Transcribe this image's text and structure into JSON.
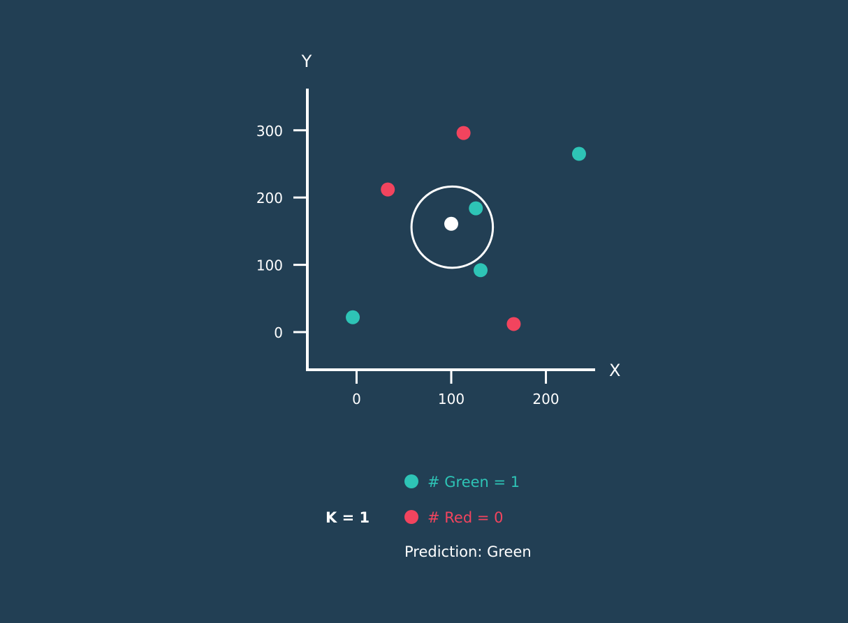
{
  "colors": {
    "background": "#223f54",
    "axis": "#ffffff",
    "green": "#2ec4b6",
    "red": "#f2445e",
    "query": "#ffffff",
    "text": "#ffffff"
  },
  "chart_data": {
    "type": "scatter",
    "xlabel": "X",
    "ylabel": "Y",
    "xlim": [
      -52,
      252
    ],
    "ylim": [
      -56,
      362
    ],
    "x_ticks": [
      0,
      100,
      200
    ],
    "y_ticks": [
      0,
      100,
      200,
      300
    ],
    "grid": false,
    "series": [
      {
        "color": "green",
        "points": [
          {
            "x": -4,
            "y": 22
          },
          {
            "x": 126,
            "y": 184
          },
          {
            "x": 131,
            "y": 92
          },
          {
            "x": 235,
            "y": 265
          }
        ]
      },
      {
        "color": "red",
        "points": [
          {
            "x": 33,
            "y": 212
          },
          {
            "x": 113,
            "y": 296
          },
          {
            "x": 166,
            "y": 12
          }
        ]
      }
    ],
    "query_point": {
      "x": 100,
      "y": 161
    },
    "neighbor_circle": {
      "center_x": 101,
      "center_y": 156,
      "radius_x_units": 43
    }
  },
  "legend": {
    "k_label": "K = 1",
    "green_count_label": "# Green = 1",
    "red_count_label": "# Red = 0",
    "prediction_label": "Prediction: Green"
  }
}
